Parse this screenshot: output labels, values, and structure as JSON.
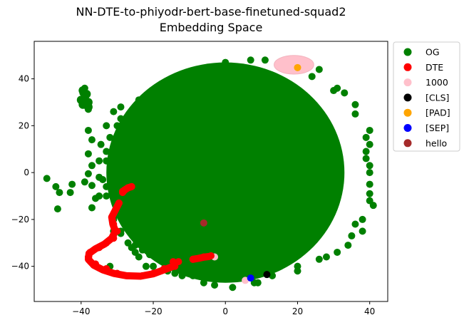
{
  "chart_data": {
    "type": "scatter",
    "title_lines": [
      "NN-DTE-to-phiyodr-bert-base-finetuned-squad2",
      "Embedding Space"
    ],
    "xlim": [
      -53,
      45
    ],
    "ylim": [
      -55,
      56
    ],
    "xticks": [
      -40,
      -20,
      0,
      20,
      40
    ],
    "yticks": [
      -40,
      -20,
      0,
      20,
      40
    ],
    "grid": false,
    "legend_position": "outside-right",
    "series": [
      {
        "name": "OG",
        "color": "#008000",
        "cloud_center": [
          0,
          0
        ],
        "cloud_radius": [
          33,
          47
        ],
        "points": [
          [
            -49.5,
            -2.5
          ],
          [
            -47,
            -6
          ],
          [
            -46.5,
            -15.5
          ],
          [
            -46,
            -8.5
          ],
          [
            -43,
            -8.5
          ],
          [
            -42.5,
            -5
          ],
          [
            -39,
            -4
          ],
          [
            -37,
            -5.5
          ],
          [
            -35,
            -2
          ],
          [
            -37,
            -15
          ],
          [
            -36,
            -11
          ],
          [
            -35,
            -10
          ],
          [
            -32,
            -40
          ],
          [
            -39.5,
            34
          ],
          [
            -39,
            29
          ],
          [
            -38,
            27
          ],
          [
            -39,
            36
          ],
          [
            -31,
            26
          ],
          [
            -30,
            20
          ],
          [
            -33,
            20
          ],
          [
            -38,
            18
          ],
          [
            -37,
            14
          ],
          [
            -38,
            8
          ],
          [
            -37,
            3
          ],
          [
            -38,
            -0.5
          ],
          [
            -34.5,
            12
          ],
          [
            -35,
            5
          ],
          [
            -30,
            -6
          ],
          [
            30,
            35
          ],
          [
            36,
            29
          ],
          [
            40,
            18
          ],
          [
            40,
            12
          ],
          [
            39,
            6
          ],
          [
            40,
            0
          ],
          [
            40,
            -5
          ],
          [
            40,
            -12
          ],
          [
            41,
            -14
          ],
          [
            38,
            -20
          ],
          [
            36,
            -22
          ],
          [
            35,
            -27
          ],
          [
            34,
            -31
          ],
          [
            31,
            -34
          ],
          [
            26,
            -37
          ],
          [
            20,
            -40
          ],
          [
            13,
            -44
          ],
          [
            8,
            -47
          ],
          [
            2,
            -49
          ],
          [
            -3,
            -48
          ],
          [
            -9,
            -44
          ],
          [
            -14,
            -43
          ],
          [
            -16,
            -42
          ],
          [
            -20,
            -40
          ],
          [
            -22,
            -40
          ],
          [
            -24,
            -36
          ],
          [
            -27,
            -30
          ],
          [
            -29,
            -26
          ],
          [
            -31,
            -25
          ],
          [
            -26,
            -32
          ],
          [
            -25,
            -31
          ],
          [
            -23,
            -33
          ],
          [
            -21,
            -35
          ],
          [
            -19,
            -36
          ],
          [
            -18,
            -33
          ],
          [
            -17,
            -30
          ],
          [
            -24,
            -28
          ],
          [
            0,
            47
          ],
          [
            7,
            48
          ],
          [
            -4,
            45
          ],
          [
            -12,
            40
          ],
          [
            -18,
            36
          ],
          [
            -24,
            31
          ],
          [
            -29,
            23
          ],
          [
            -32,
            15
          ],
          [
            -33,
            5
          ],
          [
            -34,
            -3
          ],
          [
            -33,
            -10
          ],
          [
            -30,
            -18
          ],
          [
            26,
            44
          ],
          [
            24,
            41
          ],
          [
            31,
            36
          ],
          [
            36,
            25
          ],
          [
            38,
            -25
          ],
          [
            28,
            -36
          ],
          [
            20,
            -42
          ],
          [
            9,
            -47
          ],
          [
            -6,
            -47
          ],
          [
            -12,
            -44
          ],
          [
            -25,
            -34
          ],
          [
            -29,
            -25
          ],
          [
            -18,
            32
          ],
          [
            -29,
            28
          ],
          [
            -33,
            9
          ],
          [
            -33,
            -6
          ],
          [
            -31,
            -20
          ],
          [
            40,
            -9
          ],
          [
            40,
            3
          ],
          [
            39,
            9
          ],
          [
            39,
            15
          ],
          [
            33,
            34
          ],
          [
            11,
            48
          ]
        ]
      },
      {
        "name": "DTE",
        "color": "#ff0000",
        "points": [
          [
            -26,
            -6
          ],
          [
            -27,
            -6.5
          ],
          [
            -28,
            -7.5
          ],
          [
            -28.5,
            -8
          ],
          [
            -29.5,
            -13
          ],
          [
            -30.5,
            -16
          ],
          [
            -31.5,
            -19
          ],
          [
            -31,
            -22
          ],
          [
            -30,
            -25
          ],
          [
            -31,
            -28
          ],
          [
            -33,
            -30
          ],
          [
            -35,
            -32
          ],
          [
            -37.5,
            -34
          ],
          [
            -38,
            -36
          ],
          [
            -36,
            -39
          ],
          [
            -33,
            -41
          ],
          [
            -30,
            -43
          ],
          [
            -27,
            -44
          ],
          [
            -23,
            -44
          ],
          [
            -20,
            -43
          ],
          [
            -17,
            -41
          ],
          [
            -14,
            -40
          ],
          [
            -14.5,
            -38
          ],
          [
            -13,
            -38
          ],
          [
            -9,
            -37
          ],
          [
            -6,
            -36
          ],
          [
            -4,
            -35.5
          ]
        ],
        "line_segments": [
          [
            [
              -26,
              -6
            ],
            [
              -27,
              -6.5
            ],
            [
              -28,
              -7.5
            ],
            [
              -28.5,
              -8.5
            ]
          ],
          [
            [
              -29.5,
              -13
            ],
            [
              -30.5,
              -16
            ],
            [
              -31.5,
              -19
            ],
            [
              -31.2,
              -22
            ],
            [
              -30.5,
              -25
            ],
            [
              -31.5,
              -28
            ],
            [
              -33.5,
              -30.5
            ],
            [
              -36,
              -32.5
            ],
            [
              -37.8,
              -34.5
            ],
            [
              -38,
              -37
            ],
            [
              -36.5,
              -39.5
            ],
            [
              -34,
              -41.5
            ],
            [
              -31,
              -43
            ],
            [
              -27.5,
              -44
            ],
            [
              -23.5,
              -44.2
            ],
            [
              -20,
              -43.2
            ],
            [
              -17,
              -41.5
            ],
            [
              -14.5,
              -40
            ]
          ],
          [
            [
              -9,
              -37
            ],
            [
              -7.5,
              -36.6
            ],
            [
              -6,
              -36.1
            ],
            [
              -4.5,
              -35.8
            ]
          ]
        ]
      },
      {
        "name": "1000",
        "color": "#ffc0cb",
        "cloud_center": [
          19,
          46
        ],
        "cloud_radius": [
          5.5,
          4
        ],
        "points": [
          [
            -3,
            -36
          ],
          [
            5.5,
            -46
          ]
        ]
      },
      {
        "name": "[CLS]",
        "color": "#000000",
        "points": [
          [
            11.5,
            -43.5
          ]
        ]
      },
      {
        "name": "[PAD]",
        "color": "#ffa500",
        "points": [
          [
            20,
            44.8
          ]
        ]
      },
      {
        "name": "[SEP]",
        "color": "#0000ff",
        "points": [
          [
            7,
            -45
          ]
        ]
      },
      {
        "name": "hello",
        "color": "#a52a2a",
        "points": [
          [
            -6,
            -21.5
          ]
        ]
      }
    ]
  }
}
